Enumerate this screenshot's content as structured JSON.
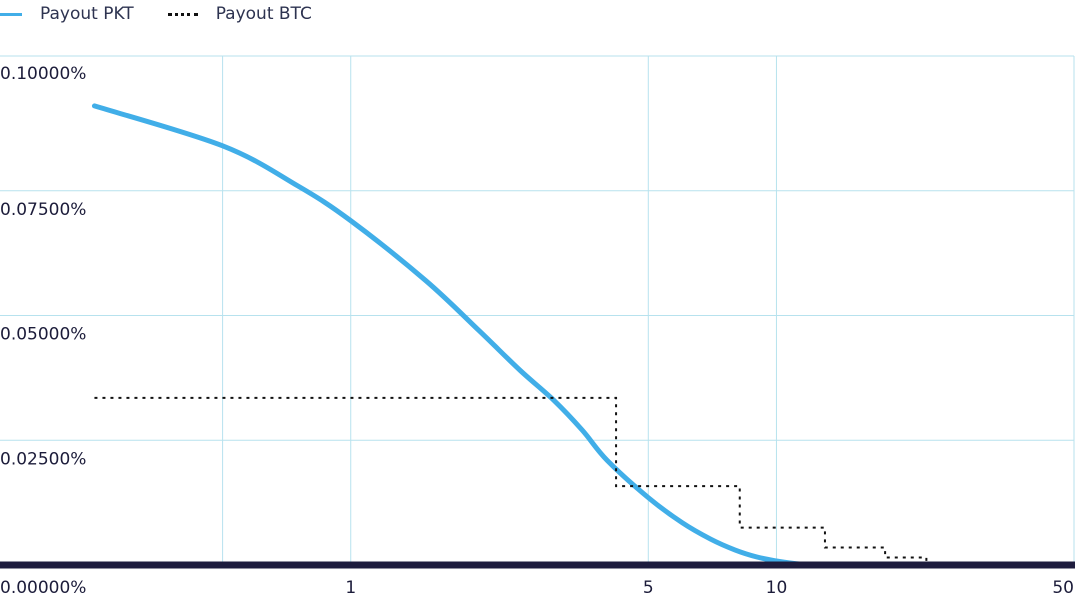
{
  "legend": {
    "pkt_label": "Payout PKT",
    "btc_label": "Payout BTC"
  },
  "chart_data": {
    "type": "line",
    "title": "",
    "xlabel": "",
    "ylabel": "",
    "x_scale": "log",
    "xlim": [
      0.15,
      50
    ],
    "ylim": [
      0,
      0.1
    ],
    "x_ticks": [
      1,
      5,
      10,
      50
    ],
    "x_tick_labels": [
      "1",
      "5",
      "10",
      "50"
    ],
    "y_ticks": [
      0,
      0.025,
      0.05,
      0.075,
      0.1
    ],
    "y_tick_labels": [
      "0.00000%",
      "0.02500%",
      "0.05000%",
      "0.07500%",
      "0.10000%"
    ],
    "x_gridlines": [
      0.5,
      1,
      5,
      10,
      50
    ],
    "grid": true,
    "legend_position": "top-left",
    "series": [
      {
        "name": "Payout PKT",
        "color": "#41aee8",
        "style": "solid",
        "x": [
          0.25,
          0.5,
          0.75,
          1,
          1.5,
          2,
          2.5,
          3,
          3.5,
          4,
          5,
          6,
          7,
          8,
          9,
          10,
          11,
          12
        ],
        "y": [
          0.092,
          0.084,
          0.076,
          0.069,
          0.057,
          0.047,
          0.039,
          0.033,
          0.027,
          0.021,
          0.0135,
          0.0085,
          0.0052,
          0.003,
          0.0016,
          0.0008,
          0.0003,
          0.0
        ]
      },
      {
        "name": "Payout BTC",
        "color": "#111111",
        "style": "dotted",
        "x": [
          0.25,
          4.2,
          4.2,
          8.2,
          8.2,
          13,
          13,
          18,
          18,
          22.5,
          22.5
        ],
        "y": [
          0.0335,
          0.0335,
          0.0158,
          0.0158,
          0.0075,
          0.0075,
          0.0035,
          0.0035,
          0.0015,
          0.0015,
          0.0
        ]
      }
    ]
  }
}
